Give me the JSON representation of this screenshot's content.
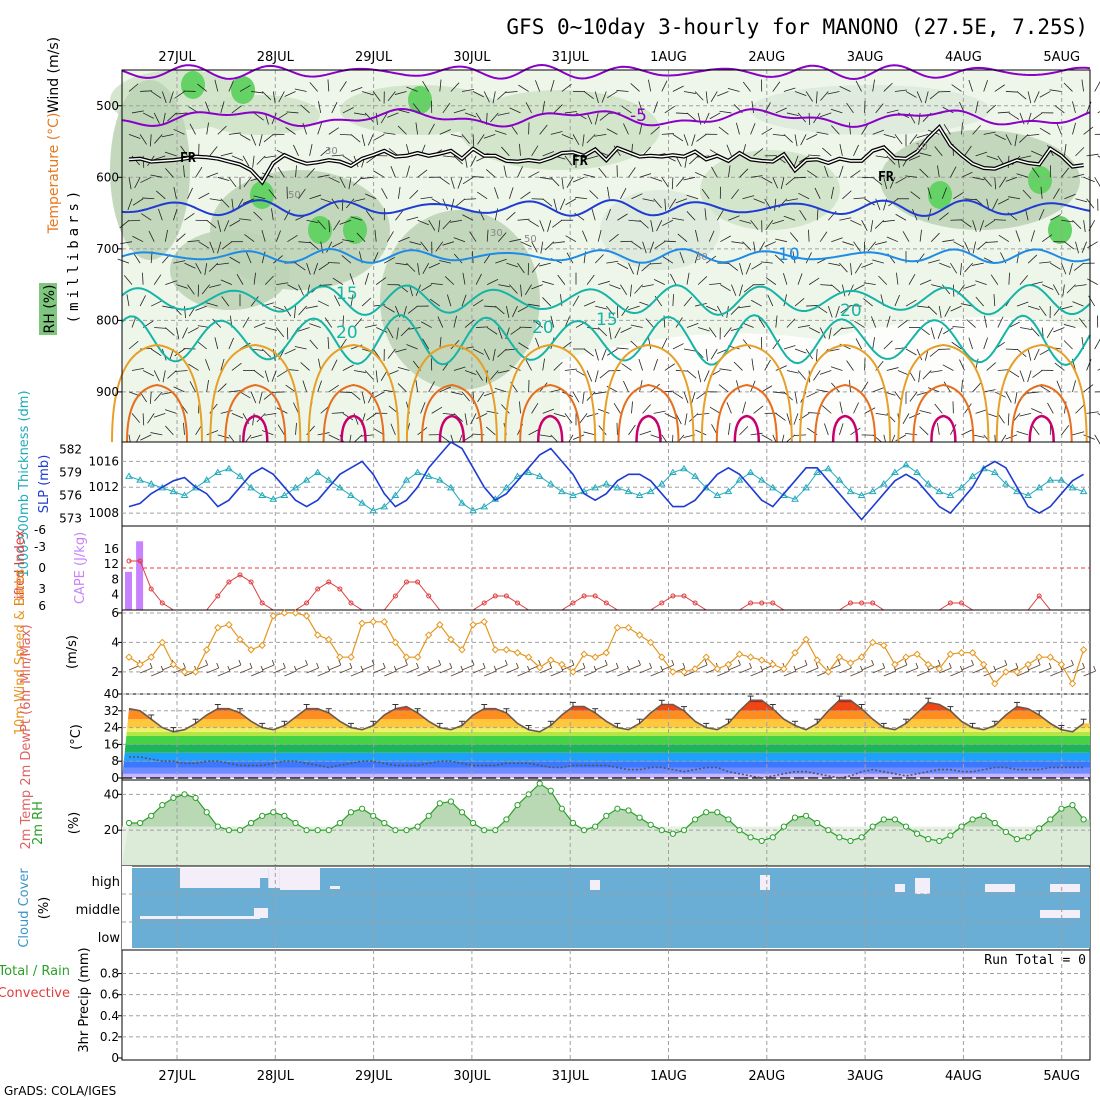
{
  "title": "GFS 0~10day 3-hourly for MANONO (27.5E, 7.25S)",
  "footer": "GrADS: COLA/IGES",
  "dates": [
    "27JUL",
    "28JUL",
    "29JUL",
    "30JUL",
    "31JUL",
    "1AUG",
    "2AUG",
    "3AUG",
    "4AUG",
    "5AUG"
  ],
  "colors": {
    "frame": "#000000",
    "grid": "#a0a0a0",
    "purple": "#8a00c8",
    "blue": "#1e3cd2",
    "lightblue": "#1e8ce6",
    "teal": "#16b4a6",
    "orange": "#e6a028",
    "darkorange": "#e66e1e",
    "magenta": "#c8006e",
    "rhgreen": "#64d264",
    "cloud": "#6aaed6",
    "cape": "#c882ff"
  },
  "panels": {
    "upper_air": {
      "ylabel": "(millibars)",
      "legend": [
        "RH (%)",
        "Temperature (°C)",
        "Wind (m/s)"
      ],
      "yticks": [
        "500",
        "600",
        "700",
        "800",
        "900"
      ],
      "contour_labels": [
        "-5",
        "FR",
        "FR",
        "FR",
        "10",
        "15",
        "20",
        "15",
        "20",
        "30",
        "50",
        "10"
      ],
      "freezing_level_label": "FR",
      "isotherm_labels": {
        "minus5": "-5",
        "ten": "10",
        "fifteen": "15",
        "twenty": "20"
      },
      "rh_labels": [
        "30",
        "50",
        "30",
        "50",
        "30",
        "10"
      ]
    },
    "thickness_slp": {
      "label_thickness": "1000-500mb Thickness (dm)",
      "label_slp": "SLP (mb)",
      "thickness_ticks": [
        "582",
        "579",
        "576",
        "573"
      ],
      "slp_ticks": [
        "1016",
        "1012",
        "1008"
      ]
    },
    "cape": {
      "label_li": "Lifted Index",
      "label_cape": "CAPE (J/kg)",
      "li_ticks": [
        "-6",
        "-3",
        "0",
        "3",
        "6"
      ],
      "cape_ticks": [
        "16",
        "12",
        "8",
        "4"
      ]
    },
    "wind10m": {
      "label": "10m Wind Speed & Barbs",
      "unit": "(m/s)",
      "yticks": [
        "6",
        "4",
        "2"
      ]
    },
    "temp2m": {
      "label": "2m Temp 2m DewPt (6hr Min/Max)",
      "unit": "(°C)",
      "yticks": [
        "40",
        "32",
        "24",
        "16",
        "8",
        "0"
      ]
    },
    "rh2m": {
      "label": "2m RH",
      "unit": "(%)",
      "yticks": [
        "40",
        "20"
      ]
    },
    "cloud": {
      "label": "Cloud Cover",
      "unit": "(%)",
      "levels": [
        "high",
        "middle",
        "low"
      ]
    },
    "precip": {
      "label_total": "Total / Rain",
      "label_conv": "Convective",
      "label_unit": "3hr Precip (mm)",
      "yticks": [
        "0.8",
        "0.6",
        "0.4",
        "0.2",
        "0"
      ],
      "run_total": "Run Total = 0"
    }
  },
  "chart_data": {
    "type": "line",
    "time_step_hours": 3,
    "x_start": "26JUL 15Z",
    "series": [
      {
        "name": "SLP (mb)",
        "values": [
          1009,
          1009.5,
          1011,
          1012,
          1013,
          1013.5,
          1012,
          1011,
          1009,
          1010,
          1012,
          1014,
          1015,
          1014,
          1012,
          1010,
          1009,
          1010,
          1012,
          1014,
          1015,
          1016,
          1014,
          1011,
          1009,
          1010,
          1012,
          1015,
          1017,
          1019,
          1018,
          1015,
          1012,
          1010,
          1011,
          1013,
          1015,
          1017,
          1018,
          1016,
          1014,
          1011,
          1010,
          1011,
          1013,
          1014,
          1014,
          1013,
          1011,
          1009,
          1009,
          1010,
          1012,
          1014,
          1015,
          1014,
          1012,
          1010,
          1009,
          1011,
          1013,
          1015,
          1015,
          1013,
          1011,
          1009,
          1007,
          1009,
          1011,
          1013,
          1014,
          1013,
          1011,
          1009,
          1008,
          1010,
          1012,
          1015,
          1016,
          1015,
          1012,
          1009,
          1008,
          1009,
          1011,
          1013,
          1014
        ]
      },
      {
        "name": "Thickness (dm)",
        "values": [
          578.5,
          578,
          577.5,
          577,
          576.5,
          576,
          577,
          578,
          579,
          579.5,
          578.5,
          577,
          576,
          575.5,
          576,
          577,
          578,
          579,
          578,
          577,
          576,
          575,
          574,
          574.5,
          576,
          578,
          579,
          578.5,
          578,
          577,
          575,
          574,
          574.5,
          575.5,
          577,
          578.5,
          579,
          578.5,
          577.5,
          576.5,
          576,
          576.5,
          577,
          577.5,
          577,
          576.5,
          576,
          576.5,
          577.5,
          579,
          579.5,
          578.5,
          577,
          576,
          576.5,
          578,
          579,
          578,
          577,
          576,
          575.5,
          577,
          579,
          579.5,
          578,
          576.5,
          576,
          576.5,
          577.5,
          579,
          580,
          579,
          577.5,
          576.5,
          576,
          577,
          578.5,
          579.5,
          579,
          577.5,
          576.5,
          576,
          577,
          578,
          578,
          577,
          576.5
        ]
      },
      {
        "name": "Lifted Index",
        "values": [
          -1,
          -1,
          3,
          5,
          6,
          6,
          6,
          6,
          4,
          2,
          1,
          2,
          5,
          6,
          6,
          6,
          5,
          3,
          2,
          3,
          5,
          6,
          6,
          6,
          4,
          2,
          2,
          4,
          6,
          6,
          6,
          6,
          5,
          4,
          4,
          5,
          6,
          6,
          6,
          6,
          5,
          4,
          4,
          5,
          6,
          6,
          6,
          6,
          5,
          4,
          4,
          5,
          6,
          6,
          6,
          6,
          5,
          5,
          5,
          6,
          6,
          6,
          6,
          6,
          6,
          5,
          5,
          5,
          6,
          6,
          6,
          6,
          6,
          6,
          5,
          5,
          6,
          6,
          6,
          6,
          6,
          6,
          4,
          6,
          6,
          6,
          6
        ]
      },
      {
        "name": "CAPE (J/kg)",
        "values": [
          10,
          18
        ]
      },
      {
        "name": "10m Wind Speed (m/s)",
        "values": [
          3,
          2.5,
          3,
          4,
          2.5,
          2,
          2,
          3.5,
          5,
          5.2,
          4.2,
          3.5,
          3.8,
          5.8,
          6,
          6,
          5.8,
          4.5,
          4.2,
          3,
          3,
          5.3,
          5.4,
          5.4,
          4,
          3,
          3,
          4.5,
          5.2,
          4.2,
          3.5,
          5.2,
          5.4,
          3.5,
          3.5,
          3.3,
          3,
          2.3,
          2.8,
          2.5,
          2,
          3.2,
          3,
          3.3,
          5,
          5,
          4.5,
          4,
          3,
          2,
          2,
          2.2,
          3,
          2.2,
          2.5,
          3.2,
          3,
          2.8,
          2.5,
          2.2,
          3.3,
          4.2,
          2.8,
          2,
          3,
          2.6,
          3,
          4,
          3.8,
          2.5,
          3,
          3.2,
          2.5,
          2.2,
          3.2,
          3.3,
          3.3,
          2.5,
          1.2,
          2,
          2,
          2.5,
          3,
          3,
          2.5,
          1.2,
          3.5
        ]
      },
      {
        "name": "2m Temp (°C)",
        "values": [
          33,
          32,
          28,
          24,
          22,
          23,
          26,
          30,
          33,
          33,
          31,
          27,
          24,
          23,
          25,
          29,
          33,
          33,
          31,
          27,
          24,
          23,
          25,
          30,
          33,
          34,
          31,
          27,
          24,
          23,
          25,
          30,
          33,
          33,
          31,
          26,
          23,
          22,
          25,
          30,
          34,
          34,
          31,
          27,
          24,
          23,
          26,
          31,
          35,
          35,
          32,
          27,
          24,
          23,
          26,
          32,
          37,
          37,
          33,
          28,
          25,
          23,
          26,
          32,
          37,
          37,
          33,
          28,
          24,
          23,
          26,
          31,
          36,
          35,
          32,
          27,
          24,
          23,
          25,
          30,
          34,
          33,
          30,
          26,
          23,
          22,
          26
        ]
      },
      {
        "name": "2m DewPt (°C)",
        "values": [
          10,
          10,
          9,
          8,
          8,
          7,
          7,
          8,
          8,
          7,
          6,
          6,
          6,
          7,
          8,
          8,
          7,
          6,
          5,
          6,
          7,
          8,
          8,
          7,
          6,
          6,
          6,
          7,
          8,
          8,
          7,
          6,
          6,
          6,
          7,
          7,
          7,
          6,
          5,
          5,
          6,
          6,
          6,
          6,
          5,
          4,
          4,
          5,
          5,
          4,
          3,
          4,
          5,
          5,
          3,
          2,
          1,
          0,
          1,
          2,
          3,
          3,
          2,
          1,
          0,
          1,
          3,
          4,
          3,
          2,
          1,
          2,
          3,
          4,
          4,
          3,
          3,
          4,
          5,
          5,
          4,
          4,
          4,
          5,
          5,
          5,
          5
        ]
      },
      {
        "name": "2m RH (%)",
        "values": [
          24,
          24,
          28,
          34,
          38,
          40,
          38,
          30,
          22,
          20,
          20,
          24,
          28,
          30,
          28,
          24,
          20,
          20,
          20,
          24,
          30,
          32,
          28,
          24,
          20,
          20,
          22,
          28,
          35,
          36,
          30,
          24,
          20,
          20,
          26,
          34,
          40,
          46,
          42,
          32,
          24,
          20,
          22,
          28,
          32,
          31,
          27,
          23,
          20,
          18,
          20,
          26,
          30,
          30,
          26,
          20,
          16,
          14,
          16,
          22,
          27,
          28,
          24,
          20,
          16,
          14,
          16,
          22,
          26,
          26,
          22,
          18,
          15,
          14,
          17,
          22,
          26,
          28,
          24,
          19,
          15,
          16,
          21,
          26,
          32,
          34,
          26
        ]
      },
      {
        "name": "Freezing level (mb)",
        "values": [
          575,
          574,
          578,
          577,
          576,
          574,
          571,
          572,
          574,
          578,
          582,
          590,
          607,
          580,
          569,
          576,
          581,
          579,
          576,
          578,
          584,
          574,
          569,
          563,
          571,
          570,
          566,
          570,
          567,
          563,
          574,
          560,
          570,
          570,
          577,
          578,
          576,
          578,
          573,
          566,
          565,
          570,
          561,
          576,
          559,
          565,
          571,
          570,
          571,
          569,
          571,
          564,
          575,
          570,
          577,
          566,
          575,
          577,
          578,
          568,
          590,
          576,
          575,
          580,
          574,
          577,
          577,
          563,
          558,
          573,
          574,
          564,
          545,
          530,
          555,
          569,
          581,
          587,
          588,
          582,
          576,
          580,
          582,
          560,
          570,
          585,
          583
        ]
      },
      {
        "name": "Precip 3hr (mm)",
        "values": [
          0,
          0,
          0,
          0,
          0,
          0,
          0,
          0,
          0,
          0,
          0,
          0,
          0,
          0,
          0,
          0,
          0,
          0,
          0,
          0,
          0,
          0,
          0,
          0,
          0,
          0,
          0,
          0,
          0,
          0,
          0,
          0,
          0,
          0,
          0,
          0,
          0,
          0,
          0,
          0,
          0,
          0,
          0,
          0,
          0,
          0,
          0,
          0,
          0,
          0,
          0,
          0,
          0,
          0,
          0,
          0,
          0,
          0,
          0,
          0,
          0,
          0,
          0,
          0,
          0,
          0,
          0,
          0,
          0,
          0,
          0,
          0,
          0,
          0,
          0,
          0,
          0,
          0,
          0,
          0,
          0,
          0,
          0,
          0,
          0,
          0,
          0
        ]
      }
    ],
    "cloud_cover_high_pct": [
      60,
      60,
      60,
      60,
      20,
      20,
      20,
      20,
      20,
      20,
      80,
      80,
      80,
      100,
      100,
      100,
      60,
      60,
      60,
      60,
      60,
      60,
      60,
      60,
      60,
      60,
      60,
      60,
      60,
      60,
      60,
      60,
      60,
      60,
      60,
      60,
      60,
      60,
      60,
      60,
      60,
      60,
      60,
      60,
      60,
      60,
      60,
      60,
      60,
      60,
      60,
      60,
      60,
      60,
      60,
      60,
      60,
      60,
      60,
      60,
      60,
      60,
      60,
      60,
      60,
      60,
      60,
      60,
      60,
      60,
      60,
      60,
      60,
      60,
      60,
      60,
      60,
      60,
      60,
      60,
      60,
      60,
      60,
      60,
      60,
      60,
      60
    ],
    "precip_run_total_mm": 0,
    "ylim": {
      "upper_air_mb": [
        450,
        970
      ],
      "slp": [
        1006,
        1019
      ],
      "li": [
        -6,
        6
      ],
      "wind": [
        0.5,
        6.2
      ],
      "temp": [
        0,
        40
      ],
      "rh": [
        0,
        48
      ],
      "precip": [
        0,
        0.9
      ]
    }
  }
}
